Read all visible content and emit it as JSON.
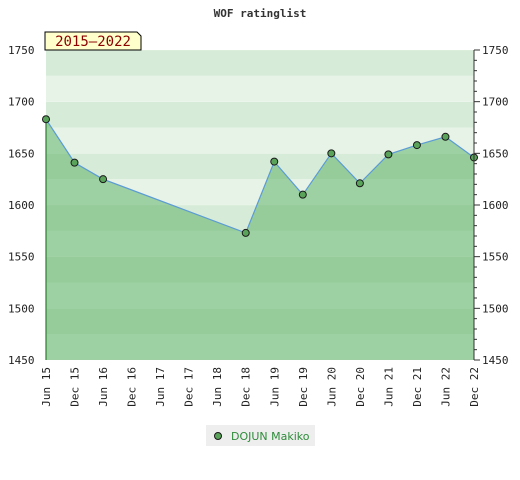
{
  "chart_data": {
    "type": "area",
    "title": "WOF ratinglist",
    "period_label": "2015–2022",
    "xlabel": "",
    "ylabel": "",
    "ylim": [
      1450,
      1750
    ],
    "y_ticks": [
      1450,
      1500,
      1550,
      1600,
      1650,
      1700,
      1750
    ],
    "x_ticks": [
      "Jun 15",
      "Dec 15",
      "Jun 16",
      "Dec 16",
      "Jun 17",
      "Dec 17",
      "Jun 18",
      "Dec 18",
      "Jun 19",
      "Dec 19",
      "Jun 20",
      "Dec 20",
      "Jun 21",
      "Dec 21",
      "Jun 22",
      "Dec 22"
    ],
    "grid": true,
    "legend_position": "bottom-center",
    "series": [
      {
        "name": "DOJUN Makiko",
        "x": [
          "Jun 15",
          "Dec 15",
          "Jun 16",
          "Dec 18",
          "Jun 19",
          "Dec 19",
          "Jun 20",
          "Dec 20",
          "Jun 21",
          "Dec 21",
          "Jun 22",
          "Dec 22"
        ],
        "values": [
          1683,
          1641,
          1625,
          1573,
          1642,
          1610,
          1650,
          1621,
          1649,
          1658,
          1666,
          1646
        ]
      }
    ],
    "colors": {
      "line": "#5b9bd5",
      "marker": "#5aa35a",
      "marker_edge": "#1a1a1a",
      "area_fill": "#3aa046",
      "legend_bg": "#eeeeee",
      "period_bg": "#ffffcc"
    }
  }
}
